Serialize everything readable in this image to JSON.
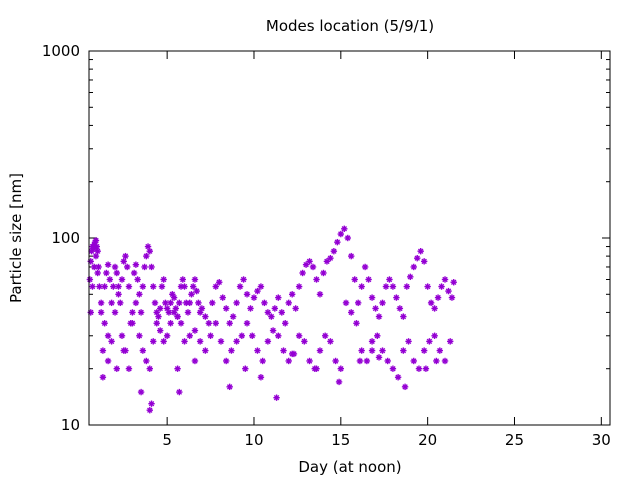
{
  "chart_data": {
    "type": "scatter",
    "title": "Modes location (5/9/1)",
    "xlabel": "Day (at noon)",
    "ylabel": "Particle size [nm]",
    "xlim": [
      0.5,
      30.5
    ],
    "ylim": [
      10,
      1000
    ],
    "yscale": "log",
    "grid": false,
    "legend": "none",
    "marker": "asterisk",
    "color": "#9400d3",
    "x_ticks": [
      5,
      10,
      15,
      20,
      25,
      30
    ],
    "x_tick_labels": [
      "5",
      "10",
      "15",
      "20",
      "25",
      "30"
    ],
    "y_ticks": [
      10,
      100,
      1000
    ],
    "y_tick_labels": [
      "10",
      "100",
      "1000"
    ],
    "x_range_of_data": [
      0.5,
      21.6
    ],
    "series": [
      {
        "name": "",
        "x": [
          0.55,
          0.6,
          0.65,
          0.7,
          0.75,
          0.8,
          0.85,
          0.9,
          0.95,
          1.0,
          1.05,
          1.1,
          1.2,
          1.3,
          1.4,
          1.5,
          1.6,
          1.7,
          1.8,
          1.9,
          2.0,
          2.1,
          2.2,
          2.3,
          2.4,
          2.5,
          2.6,
          2.7,
          2.8,
          2.9,
          3.0,
          3.1,
          3.2,
          3.3,
          3.4,
          3.5,
          3.6,
          3.7,
          3.8,
          3.9,
          4.0,
          4.1,
          4.2,
          4.3,
          4.4,
          4.5,
          4.6,
          4.7,
          4.8,
          4.9,
          5.0,
          5.1,
          5.2,
          5.3,
          5.4,
          5.5,
          5.6,
          5.7,
          5.8,
          5.9,
          6.0,
          6.1,
          6.2,
          6.3,
          6.4,
          6.5,
          6.6,
          6.7,
          6.8,
          6.9,
          7.0,
          7.2,
          7.4,
          7.6,
          7.8,
          8.0,
          8.2,
          8.4,
          8.6,
          8.8,
          9.0,
          9.2,
          9.4,
          9.6,
          9.8,
          10.0,
          10.2,
          10.4,
          10.6,
          10.8,
          11.0,
          11.2,
          11.4,
          11.6,
          11.8,
          12.0,
          12.2,
          12.4,
          12.6,
          12.8,
          13.0,
          13.2,
          13.4,
          13.6,
          13.8,
          14.0,
          14.2,
          14.4,
          14.6,
          14.8,
          15.0,
          15.2,
          15.4,
          15.6,
          15.8,
          16.0,
          16.2,
          16.4,
          16.6,
          16.8,
          17.0,
          17.2,
          17.4,
          17.6,
          17.8,
          18.0,
          18.2,
          18.4,
          18.6,
          18.8,
          19.0,
          19.2,
          19.4,
          19.6,
          19.8,
          20.0,
          20.2,
          20.4,
          20.6,
          20.8,
          21.0,
          21.2,
          21.4,
          21.5,
          0.6,
          0.7,
          0.8,
          0.9,
          1.0,
          1.2,
          1.4,
          1.6,
          1.8,
          2.0,
          2.2,
          2.4,
          2.6,
          2.8,
          3.0,
          3.2,
          3.4,
          3.6,
          3.8,
          4.0,
          4.2,
          4.4,
          4.6,
          4.8,
          5.0,
          5.2,
          5.4,
          5.6,
          5.8,
          6.0,
          6.3,
          6.6,
          6.9,
          7.2,
          7.5,
          7.8,
          8.1,
          8.4,
          8.7,
          9.0,
          9.3,
          9.6,
          9.9,
          10.2,
          10.5,
          10.8,
          11.1,
          11.4,
          11.7,
          12.0,
          12.3,
          12.6,
          12.9,
          13.2,
          13.5,
          13.8,
          14.1,
          14.4,
          14.7,
          15.0,
          15.3,
          15.6,
          15.9,
          16.2,
          16.5,
          16.8,
          17.1,
          17.4,
          17.7,
          18.0,
          18.3,
          18.6,
          18.9,
          19.2,
          19.5,
          19.8,
          20.1,
          20.4,
          20.7,
          21.0,
          21.3,
          1.3,
          1.6,
          2.1,
          2.5,
          3.5,
          4.0,
          4.1,
          5.6,
          5.7,
          6.6,
          8.6,
          9.5,
          10.4,
          11.3,
          12.2,
          13.6,
          14.9,
          16.1,
          16.8,
          17.2,
          18.7,
          19.9,
          20.5
        ],
        "y": [
          60,
          75,
          85,
          90,
          88,
          92,
          95,
          97,
          90,
          85,
          70,
          55,
          40,
          25,
          55,
          65,
          72,
          60,
          45,
          55,
          70,
          65,
          55,
          45,
          60,
          75,
          80,
          70,
          55,
          35,
          40,
          65,
          72,
          60,
          50,
          40,
          55,
          70,
          80,
          90,
          85,
          70,
          55,
          45,
          40,
          38,
          42,
          55,
          60,
          45,
          42,
          40,
          45,
          50,
          48,
          42,
          38,
          45,
          55,
          60,
          55,
          45,
          40,
          45,
          50,
          55,
          60,
          52,
          45,
          40,
          42,
          38,
          35,
          45,
          55,
          58,
          48,
          42,
          35,
          38,
          45,
          55,
          60,
          50,
          42,
          48,
          52,
          55,
          45,
          40,
          38,
          42,
          48,
          40,
          35,
          45,
          50,
          42,
          55,
          65,
          72,
          75,
          70,
          60,
          50,
          65,
          75,
          78,
          85,
          95,
          105,
          112,
          100,
          80,
          60,
          45,
          55,
          70,
          60,
          48,
          42,
          38,
          45,
          55,
          60,
          55,
          48,
          42,
          38,
          55,
          62,
          70,
          78,
          85,
          75,
          55,
          45,
          42,
          48,
          55,
          60,
          52,
          48,
          58,
          40,
          55,
          70,
          80,
          65,
          45,
          35,
          30,
          28,
          40,
          50,
          30,
          25,
          20,
          35,
          45,
          30,
          25,
          22,
          20,
          28,
          35,
          32,
          28,
          30,
          35,
          40,
          38,
          35,
          28,
          30,
          32,
          28,
          25,
          30,
          35,
          28,
          22,
          25,
          28,
          30,
          35,
          30,
          25,
          22,
          28,
          32,
          30,
          25,
          22,
          24,
          30,
          28,
          22,
          20,
          25,
          30,
          28,
          22,
          20,
          45,
          40,
          35,
          25,
          22,
          28,
          30,
          25,
          22,
          20,
          18,
          25,
          28,
          22,
          20,
          25,
          28,
          30,
          25,
          22,
          28,
          18,
          22,
          20,
          25,
          15,
          12,
          13,
          20,
          15,
          22,
          16,
          20,
          18,
          14,
          24,
          20,
          17,
          22,
          25,
          23,
          16,
          20,
          22
        ]
      }
    ]
  }
}
